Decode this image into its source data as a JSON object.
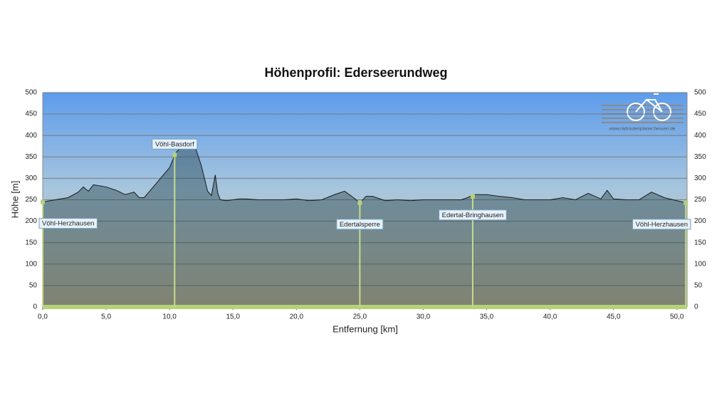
{
  "chart_data": {
    "type": "area",
    "title": "Höhenprofil: Ederseerundweg",
    "x_label": "Entfernung  [km]",
    "y_label": "Höhe [m]",
    "watermark": "www.radroutenplaner.hessen.de",
    "x": [
      0,
      1,
      2,
      2.8,
      3.2,
      3.6,
      4.0,
      5.0,
      5.8,
      6.5,
      7.2,
      7.6,
      8.0,
      9.0,
      10.0,
      10.5,
      11.0,
      11.5,
      12.0,
      12.5,
      13.0,
      13.3,
      13.6,
      13.8,
      14.0,
      14.5,
      15.0,
      15.5,
      16,
      17,
      18,
      19,
      20,
      21,
      22,
      23,
      23.8,
      24.5,
      25,
      25.5,
      26,
      27,
      28,
      29,
      30,
      31,
      32,
      33,
      33.5,
      34,
      35,
      36,
      37,
      38,
      39,
      40,
      41,
      42,
      43,
      44,
      44.5,
      45,
      46,
      47,
      48,
      49,
      50,
      50.7
    ],
    "values": [
      245,
      250,
      255,
      268,
      280,
      270,
      285,
      280,
      272,
      262,
      268,
      255,
      255,
      290,
      325,
      360,
      375,
      390,
      375,
      330,
      270,
      260,
      308,
      265,
      250,
      248,
      250,
      252,
      252,
      250,
      250,
      250,
      252,
      248,
      250,
      262,
      270,
      255,
      243,
      258,
      258,
      248,
      250,
      248,
      250,
      250,
      250,
      250,
      255,
      262,
      262,
      258,
      255,
      250,
      250,
      250,
      255,
      250,
      265,
      252,
      272,
      252,
      250,
      250,
      268,
      255,
      248,
      243
    ],
    "xlim": [
      0,
      50.8
    ],
    "ylim": [
      0,
      500
    ],
    "xticks": [
      {
        "value": 0,
        "label": "0,0"
      },
      {
        "value": 5,
        "label": "5,0"
      },
      {
        "value": 10,
        "label": "10,0"
      },
      {
        "value": 15,
        "label": "15,0"
      },
      {
        "value": 20,
        "label": "20,0"
      },
      {
        "value": 25,
        "label": "25,0"
      },
      {
        "value": 30,
        "label": "30,0"
      },
      {
        "value": 35,
        "label": "35,0"
      },
      {
        "value": 40,
        "label": "40,0"
      },
      {
        "value": 45,
        "label": "45,0"
      },
      {
        "value": 50,
        "label": "50,0"
      }
    ],
    "yticks": [
      0,
      50,
      100,
      150,
      200,
      250,
      300,
      350,
      400,
      450,
      500
    ],
    "grid": true,
    "annotations": [
      {
        "label": "Vöhl-Herzhausen",
        "x": 0,
        "y": 245
      },
      {
        "label": "Vöhl-Basdorf",
        "x": 10.4,
        "y": 355
      },
      {
        "label": "Edertalsperre",
        "x": 25.0,
        "y": 243
      },
      {
        "label": "Edertal-Bringhausen",
        "x": 33.9,
        "y": 258
      },
      {
        "label": "Vöhl-Herzhausen",
        "x": 50.7,
        "y": 243
      }
    ]
  }
}
